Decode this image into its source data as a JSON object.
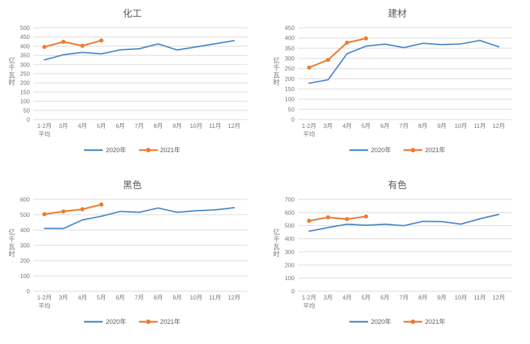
{
  "page": {
    "background": "#ffffff"
  },
  "colors": {
    "series_2020": "#4F8BC9",
    "series_2021": "#ED7D31",
    "gridline": "#D9D9D9",
    "tick_text": "#757575",
    "title_text": "#595959"
  },
  "legend_labels": {
    "s2020": "2020年",
    "s2021": "2021年"
  },
  "chart_data": [
    {
      "type": "line",
      "title": "化工",
      "ylabel": "亿千瓦时",
      "categories": [
        "1-2月\n平均",
        "3月",
        "4月",
        "5月",
        "6月",
        "7月",
        "8月",
        "9月",
        "10月",
        "11月",
        "12月"
      ],
      "ylim": [
        0,
        500
      ],
      "ytick_step": 50,
      "grid": true,
      "legend_position": "bottom",
      "series": [
        {
          "name": "2020年",
          "color": "#4F8BC9",
          "marker": "none",
          "values": [
            325,
            353,
            366,
            358,
            380,
            386,
            412,
            379,
            396,
            413,
            430
          ]
        },
        {
          "name": "2021年",
          "color": "#ED7D31",
          "marker": "circle",
          "values": [
            396,
            424,
            402,
            431
          ]
        }
      ]
    },
    {
      "type": "line",
      "title": "建材",
      "ylabel": "亿千瓦时",
      "categories": [
        "1-2月\n平均",
        "3月",
        "4月",
        "5月",
        "6月",
        "7月",
        "8月",
        "9月",
        "10月",
        "11月",
        "12月"
      ],
      "ylim": [
        0,
        450
      ],
      "ytick_step": 50,
      "grid": true,
      "legend_position": "bottom",
      "series": [
        {
          "name": "2020年",
          "color": "#4F8BC9",
          "marker": "none",
          "values": [
            178,
            195,
            323,
            360,
            370,
            353,
            374,
            367,
            371,
            388,
            357
          ]
        },
        {
          "name": "2021年",
          "color": "#ED7D31",
          "marker": "circle",
          "values": [
            255,
            293,
            377,
            398
          ]
        }
      ]
    },
    {
      "type": "line",
      "title": "黑色",
      "ylabel": "亿千瓦时",
      "categories": [
        "1-2月\n平均",
        "3月",
        "4月",
        "5月",
        "6月",
        "7月",
        "8月",
        "9月",
        "10月",
        "11月",
        "12月"
      ],
      "ylim": [
        0,
        600
      ],
      "ytick_step": 100,
      "grid": true,
      "legend_position": "bottom",
      "series": [
        {
          "name": "2020年",
          "color": "#4F8BC9",
          "marker": "none",
          "values": [
            411,
            410,
            466,
            490,
            522,
            516,
            544,
            516,
            526,
            532,
            546
          ]
        },
        {
          "name": "2021年",
          "color": "#ED7D31",
          "marker": "circle",
          "values": [
            503,
            522,
            536,
            567
          ]
        }
      ]
    },
    {
      "type": "line",
      "title": "有色",
      "ylabel": "亿千瓦时",
      "categories": [
        "1-2月\n平均",
        "3月",
        "4月",
        "5月",
        "6月",
        "7月",
        "8月",
        "9月",
        "10月",
        "11月",
        "12月"
      ],
      "ylim": [
        0,
        700
      ],
      "ytick_step": 100,
      "grid": true,
      "legend_position": "bottom",
      "series": [
        {
          "name": "2020年",
          "color": "#4F8BC9",
          "marker": "none",
          "values": [
            458,
            485,
            511,
            503,
            511,
            500,
            533,
            531,
            512,
            552,
            586
          ]
        },
        {
          "name": "2021年",
          "color": "#ED7D31",
          "marker": "circle",
          "values": [
            537,
            563,
            550,
            570
          ]
        }
      ]
    }
  ]
}
